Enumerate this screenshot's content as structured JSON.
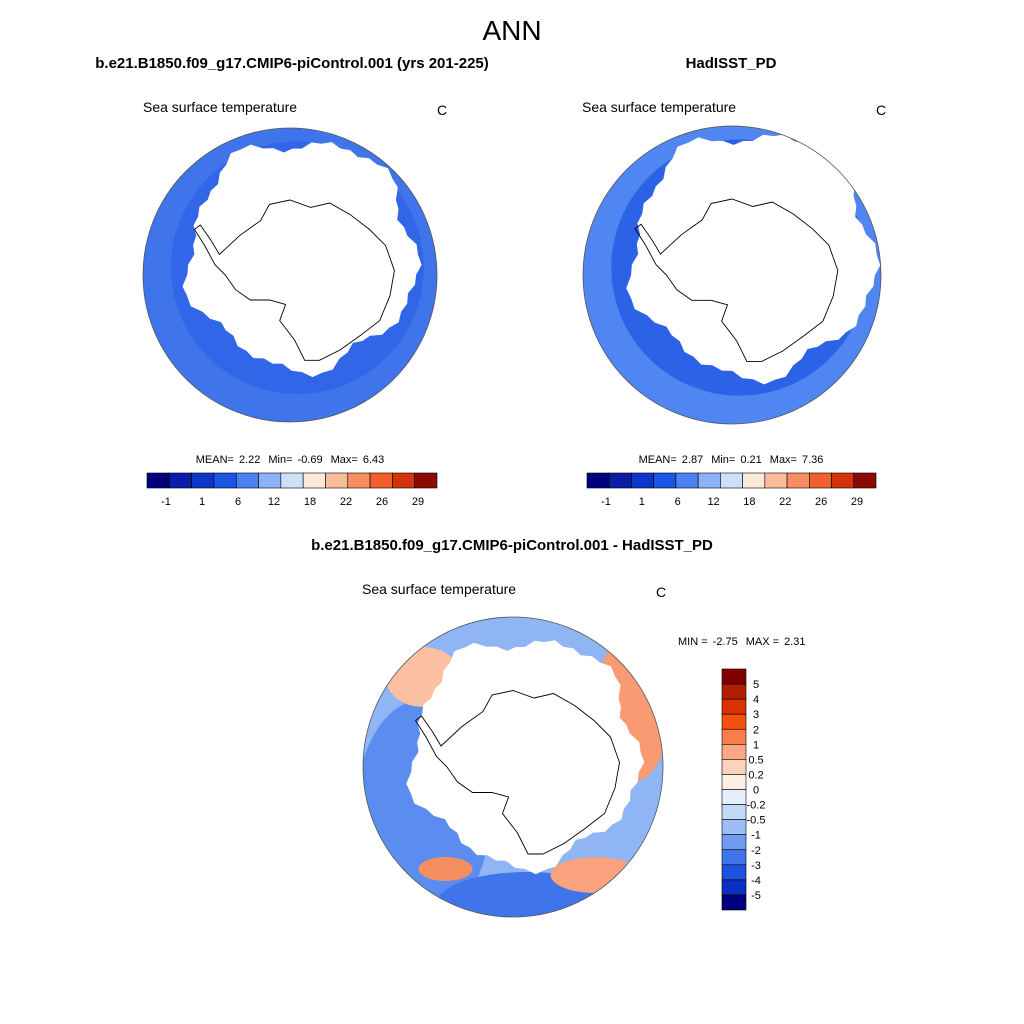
{
  "title": "ANN",
  "panels": [
    {
      "title": "b.e21.B1850.f09_g17.CMIP6-piControl.001 (yrs 201-225)",
      "subtitle": "Sea surface temperature",
      "units": "C",
      "stats": [
        {
          "label": "MEAN=",
          "value": 2.22
        },
        {
          "label": "Min=",
          "value": -0.69
        },
        {
          "label": "Max=",
          "value": 6.43
        }
      ],
      "colorbar": {
        "colors": [
          "#00007f",
          "#0a1ea8",
          "#0b36c8",
          "#1a55e6",
          "#4b82f2",
          "#8cb1f4",
          "#cde0fa",
          "#fde8da",
          "#fbbc9c",
          "#f78e62",
          "#f0602e",
          "#d2330c",
          "#8c0a00"
        ],
        "labels": [
          -1,
          1,
          6,
          12,
          18,
          22,
          26,
          29
        ]
      }
    },
    {
      "title": "HadISST_PD",
      "subtitle": "Sea surface temperature",
      "units": "C",
      "stats": [
        {
          "label": "MEAN=",
          "value": 2.87
        },
        {
          "label": "Min=",
          "value": 0.21
        },
        {
          "label": "Max=",
          "value": 7.36
        }
      ],
      "colorbar": {
        "colors": [
          "#00007f",
          "#0a1ea8",
          "#0b36c8",
          "#1a55e6",
          "#4b82f2",
          "#8cb1f4",
          "#cde0fa",
          "#fde8da",
          "#fbbc9c",
          "#f78e62",
          "#f0602e",
          "#d2330c",
          "#8c0a00"
        ],
        "labels": [
          -1,
          1,
          6,
          12,
          18,
          22,
          26,
          29
        ]
      }
    },
    {
      "title": "b.e21.B1850.f09_g17.CMIP6-piControl.001 - HadISST_PD",
      "subtitle": "Sea surface temperature",
      "units": "C",
      "stats": [
        {
          "label": "MIN =",
          "value": -2.75
        },
        {
          "label": "MAX =",
          "value": 2.31
        }
      ],
      "colorbar": {
        "colors": [
          "#800000",
          "#b01f00",
          "#d93100",
          "#f5500f",
          "#fa7d4c",
          "#fca785",
          "#fdd2bb",
          "#fdefe4",
          "#e6effc",
          "#c4d8f8",
          "#9dbdf5",
          "#6f9cf0",
          "#3f74ea",
          "#1f51e0",
          "#0a2fc0",
          "#00007f"
        ],
        "labels": [
          5,
          4,
          3,
          2,
          1,
          0.5,
          0.2,
          0,
          -0.2,
          -0.5,
          -1,
          -2,
          -3,
          -4,
          -5
        ]
      }
    }
  ]
}
